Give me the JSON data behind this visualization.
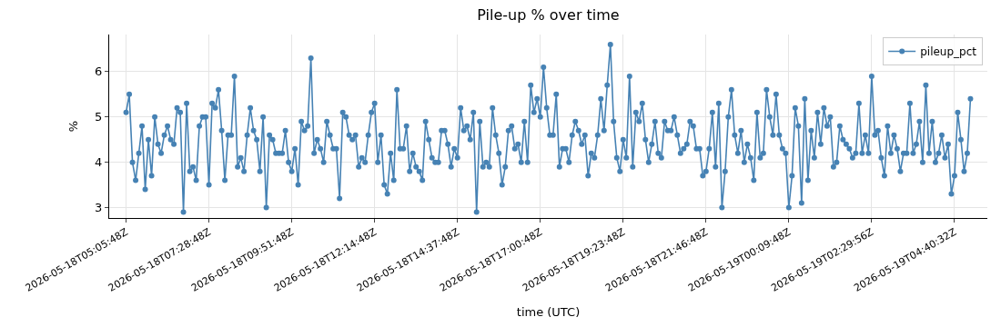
{
  "chart_data": {
    "type": "line",
    "title": "Pile-up % over time",
    "xlabel": "time (UTC)",
    "ylabel": "%",
    "categories": [
      "2026-05-18T05:05:48Z",
      null,
      null,
      null,
      null,
      null,
      null,
      null,
      null,
      null,
      null,
      null,
      null,
      null,
      null,
      null,
      null,
      null,
      null,
      null,
      null,
      null,
      null,
      null,
      null,
      null,
      "2026-05-18T07:28:48Z",
      null,
      null,
      null,
      null,
      null,
      null,
      null,
      null,
      null,
      null,
      null,
      null,
      null,
      null,
      null,
      null,
      null,
      null,
      null,
      null,
      null,
      null,
      null,
      null,
      null,
      "2026-05-18T09:51:48Z",
      null,
      null,
      null,
      null,
      null,
      null,
      null,
      null,
      null,
      null,
      null,
      null,
      null,
      null,
      null,
      null,
      null,
      null,
      null,
      null,
      null,
      null,
      null,
      null,
      null,
      "2026-05-18T12:14:48Z",
      null,
      null,
      null,
      null,
      null,
      null,
      null,
      null,
      null,
      null,
      null,
      null,
      null,
      null,
      null,
      null,
      null,
      null,
      null,
      null,
      null,
      null,
      null,
      null,
      null,
      "2026-05-18T14:37:48Z",
      null,
      null,
      null,
      null,
      null,
      null,
      null,
      null,
      null,
      null,
      null,
      null,
      null,
      null,
      null,
      null,
      null,
      null,
      null,
      null,
      null,
      null,
      null,
      null,
      null,
      "2026-05-18T17:00:48Z",
      null,
      null,
      null,
      null,
      null,
      null,
      null,
      null,
      null,
      null,
      null,
      null,
      null,
      null,
      null,
      null,
      null,
      null,
      null,
      null,
      null,
      null,
      null,
      null,
      null,
      "2026-05-18T19:23:48Z",
      null,
      null,
      null,
      null,
      null,
      null,
      null,
      null,
      null,
      null,
      null,
      null,
      null,
      null,
      null,
      null,
      null,
      null,
      null,
      null,
      null,
      null,
      null,
      null,
      null,
      "2026-05-18T21:46:48Z",
      null,
      null,
      null,
      null,
      null,
      null,
      null,
      null,
      null,
      null,
      null,
      null,
      null,
      null,
      null,
      null,
      null,
      null,
      null,
      null,
      null,
      null,
      null,
      null,
      null,
      "2026-05-19T00:09:48Z",
      null,
      null,
      null,
      null,
      null,
      null,
      null,
      null,
      null,
      null,
      null,
      null,
      null,
      null,
      null,
      null,
      null,
      null,
      null,
      null,
      null,
      null,
      null,
      null,
      null,
      "2026-05-19T02:29:56Z",
      null,
      null,
      null,
      null,
      null,
      null,
      null,
      null,
      null,
      null,
      null,
      null,
      null,
      null,
      null,
      null,
      null,
      null,
      null,
      null,
      null,
      null,
      null,
      null,
      null,
      "2026-05-19T04:40:32Z",
      null,
      null,
      null,
      null,
      null
    ],
    "series": [
      {
        "name": "pileup_pct",
        "color": "#4682b4",
        "values": [
          5.1,
          5.5,
          4.0,
          3.6,
          4.2,
          4.8,
          3.4,
          4.5,
          3.7,
          5.0,
          4.4,
          4.2,
          4.6,
          4.8,
          4.5,
          4.4,
          5.2,
          5.1,
          2.9,
          5.3,
          3.8,
          3.9,
          3.6,
          4.8,
          5.0,
          5.0,
          3.5,
          5.3,
          5.2,
          5.6,
          4.7,
          3.6,
          4.6,
          4.6,
          5.9,
          3.9,
          4.1,
          3.8,
          4.6,
          5.2,
          4.7,
          4.5,
          3.8,
          5.0,
          3.0,
          4.6,
          4.5,
          4.2,
          4.2,
          4.2,
          4.7,
          4.0,
          3.8,
          4.3,
          3.5,
          4.9,
          4.7,
          4.8,
          6.3,
          4.2,
          4.5,
          4.3,
          4.0,
          4.9,
          4.6,
          4.3,
          4.3,
          3.2,
          5.1,
          5.0,
          4.6,
          4.5,
          4.6,
          3.9,
          4.1,
          4.0,
          4.6,
          5.1,
          5.3,
          4.0,
          4.6,
          3.5,
          3.3,
          4.2,
          3.6,
          5.6,
          4.3,
          4.3,
          4.8,
          3.8,
          4.2,
          3.9,
          3.8,
          3.6,
          4.9,
          4.5,
          4.1,
          4.0,
          4.0,
          4.7,
          4.7,
          4.4,
          3.9,
          4.3,
          4.1,
          5.2,
          4.7,
          4.8,
          4.5,
          5.1,
          2.9,
          4.9,
          3.9,
          4.0,
          3.9,
          5.2,
          4.6,
          4.2,
          3.5,
          3.9,
          4.7,
          4.8,
          4.3,
          4.4,
          4.0,
          4.9,
          4.0,
          5.7,
          5.1,
          5.4,
          5.0,
          6.1,
          5.2,
          4.6,
          4.6,
          5.5,
          3.9,
          4.3,
          4.3,
          4.0,
          4.6,
          4.9,
          4.7,
          4.4,
          4.6,
          3.7,
          4.2,
          4.1,
          4.6,
          5.4,
          4.7,
          5.7,
          6.6,
          4.9,
          4.1,
          3.8,
          4.5,
          4.1,
          5.9,
          3.9,
          5.1,
          4.9,
          5.3,
          4.5,
          4.0,
          4.4,
          4.9,
          4.2,
          4.1,
          4.9,
          4.7,
          4.7,
          5.0,
          4.6,
          4.2,
          4.3,
          4.4,
          4.9,
          4.8,
          4.3,
          4.3,
          3.7,
          3.8,
          4.3,
          5.1,
          3.9,
          5.3,
          3.0,
          3.8,
          5.0,
          5.6,
          4.6,
          4.2,
          4.7,
          4.0,
          4.4,
          4.1,
          3.6,
          5.1,
          4.1,
          4.2,
          5.6,
          5.0,
          4.6,
          5.5,
          4.6,
          4.3,
          4.2,
          3.0,
          3.7,
          5.2,
          4.8,
          3.1,
          5.4,
          3.6,
          4.7,
          4.1,
          5.1,
          4.4,
          5.2,
          4.8,
          5.0,
          3.9,
          4.0,
          4.8,
          4.5,
          4.4,
          4.3,
          4.1,
          4.2,
          5.3,
          4.2,
          4.6,
          4.2,
          5.9,
          4.6,
          4.7,
          4.1,
          3.7,
          4.8,
          4.2,
          4.6,
          4.3,
          3.8,
          4.2,
          4.2,
          5.3,
          4.2,
          4.4,
          4.9,
          4.0,
          5.7,
          4.2,
          4.9,
          4.0,
          4.2,
          4.6,
          4.1,
          4.4,
          3.3,
          3.7,
          5.1,
          4.5,
          3.8,
          4.2,
          5.4
        ]
      }
    ],
    "ylim": [
      2.77,
      6.82
    ],
    "yticks": [
      3,
      4,
      5,
      6
    ],
    "grid": true,
    "legend": "top right",
    "marker": "circle",
    "line_style": "solid"
  }
}
